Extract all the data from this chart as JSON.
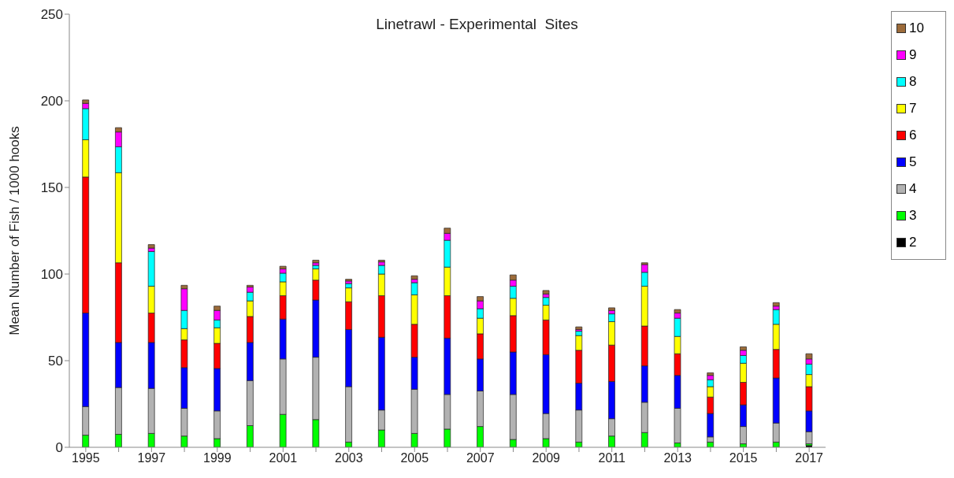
{
  "chart_data": {
    "type": "bar",
    "stacked": true,
    "title": "Linetrawl - Experimental  Sites",
    "ylabel": "Mean Number of Fish  / 1000 hooks",
    "categories": [
      "1995",
      null,
      "1997",
      null,
      "1999",
      null,
      "2001",
      null,
      "2003",
      null,
      "2005",
      null,
      "2007",
      null,
      "2009",
      null,
      "2011",
      null,
      "2013",
      null,
      "2015",
      null,
      "2017"
    ],
    "series": [
      {
        "name": "2",
        "color": "#000000",
        "values": [
          0,
          0,
          0,
          0,
          0,
          0,
          0,
          0,
          0,
          0,
          0,
          0,
          0,
          0,
          0,
          0,
          0,
          0,
          0,
          0,
          0,
          0,
          1
        ]
      },
      {
        "name": "3",
        "color": "#00ff00",
        "values": [
          7,
          7.5,
          8,
          6.5,
          5,
          12.5,
          19,
          16,
          3,
          10,
          8,
          10.5,
          12,
          4.5,
          5,
          3,
          6.5,
          8.5,
          2.5,
          3,
          2,
          3,
          1
        ]
      },
      {
        "name": "4",
        "color": "#b2b2b2",
        "values": [
          16.5,
          27,
          26,
          16,
          16,
          26,
          32,
          36,
          32,
          11.5,
          25.5,
          20,
          20.5,
          26,
          14.5,
          18.5,
          10,
          17.5,
          20,
          3,
          10,
          11,
          7
        ]
      },
      {
        "name": "5",
        "color": "#0000ff",
        "values": [
          54,
          26,
          26.5,
          23.5,
          24.5,
          22,
          23,
          33,
          33,
          42,
          18.5,
          32.5,
          18.5,
          24.5,
          34,
          15.5,
          21.5,
          21,
          19,
          13.5,
          12.5,
          26,
          12
        ]
      },
      {
        "name": "6",
        "color": "#ff0000",
        "values": [
          78.5,
          46,
          17,
          16,
          14.5,
          15,
          13.5,
          11.5,
          16,
          24,
          19,
          24.5,
          14.5,
          21,
          20,
          19,
          21,
          23,
          12.5,
          9.5,
          13,
          16.5,
          14
        ]
      },
      {
        "name": "7",
        "color": "#ffff00",
        "values": [
          21.5,
          52,
          15.5,
          6.5,
          9,
          9,
          8,
          6.5,
          8,
          12.5,
          17,
          16.5,
          9,
          10,
          8.5,
          8.5,
          13.5,
          23,
          10,
          6,
          11,
          14.5,
          7
        ]
      },
      {
        "name": "8",
        "color": "#00ffff",
        "values": [
          18,
          15,
          20,
          10.5,
          4.5,
          5,
          5,
          2,
          2.5,
          5,
          7,
          15.5,
          5.5,
          7,
          4.5,
          2.5,
          4.5,
          8,
          10.5,
          4,
          4.5,
          8.5,
          6
        ]
      },
      {
        "name": "9",
        "color": "#ff00ff",
        "values": [
          3,
          8.5,
          2,
          12.5,
          5.5,
          3,
          2.5,
          1.5,
          1.5,
          2,
          2,
          4,
          4.5,
          3.5,
          2,
          1,
          2,
          4.5,
          3,
          2.5,
          3,
          2,
          3
        ]
      },
      {
        "name": "10",
        "color": "#9c6b3a",
        "values": [
          2,
          2.5,
          2,
          2,
          2.5,
          1,
          1.5,
          1.5,
          1,
          1,
          2,
          3,
          2.5,
          3,
          2,
          1.5,
          1.5,
          1,
          2,
          1.5,
          2,
          2,
          3
        ]
      }
    ],
    "ylim": [
      0,
      250
    ],
    "yticks": [
      0,
      50,
      100,
      150,
      200,
      250
    ],
    "legend": "top right"
  }
}
